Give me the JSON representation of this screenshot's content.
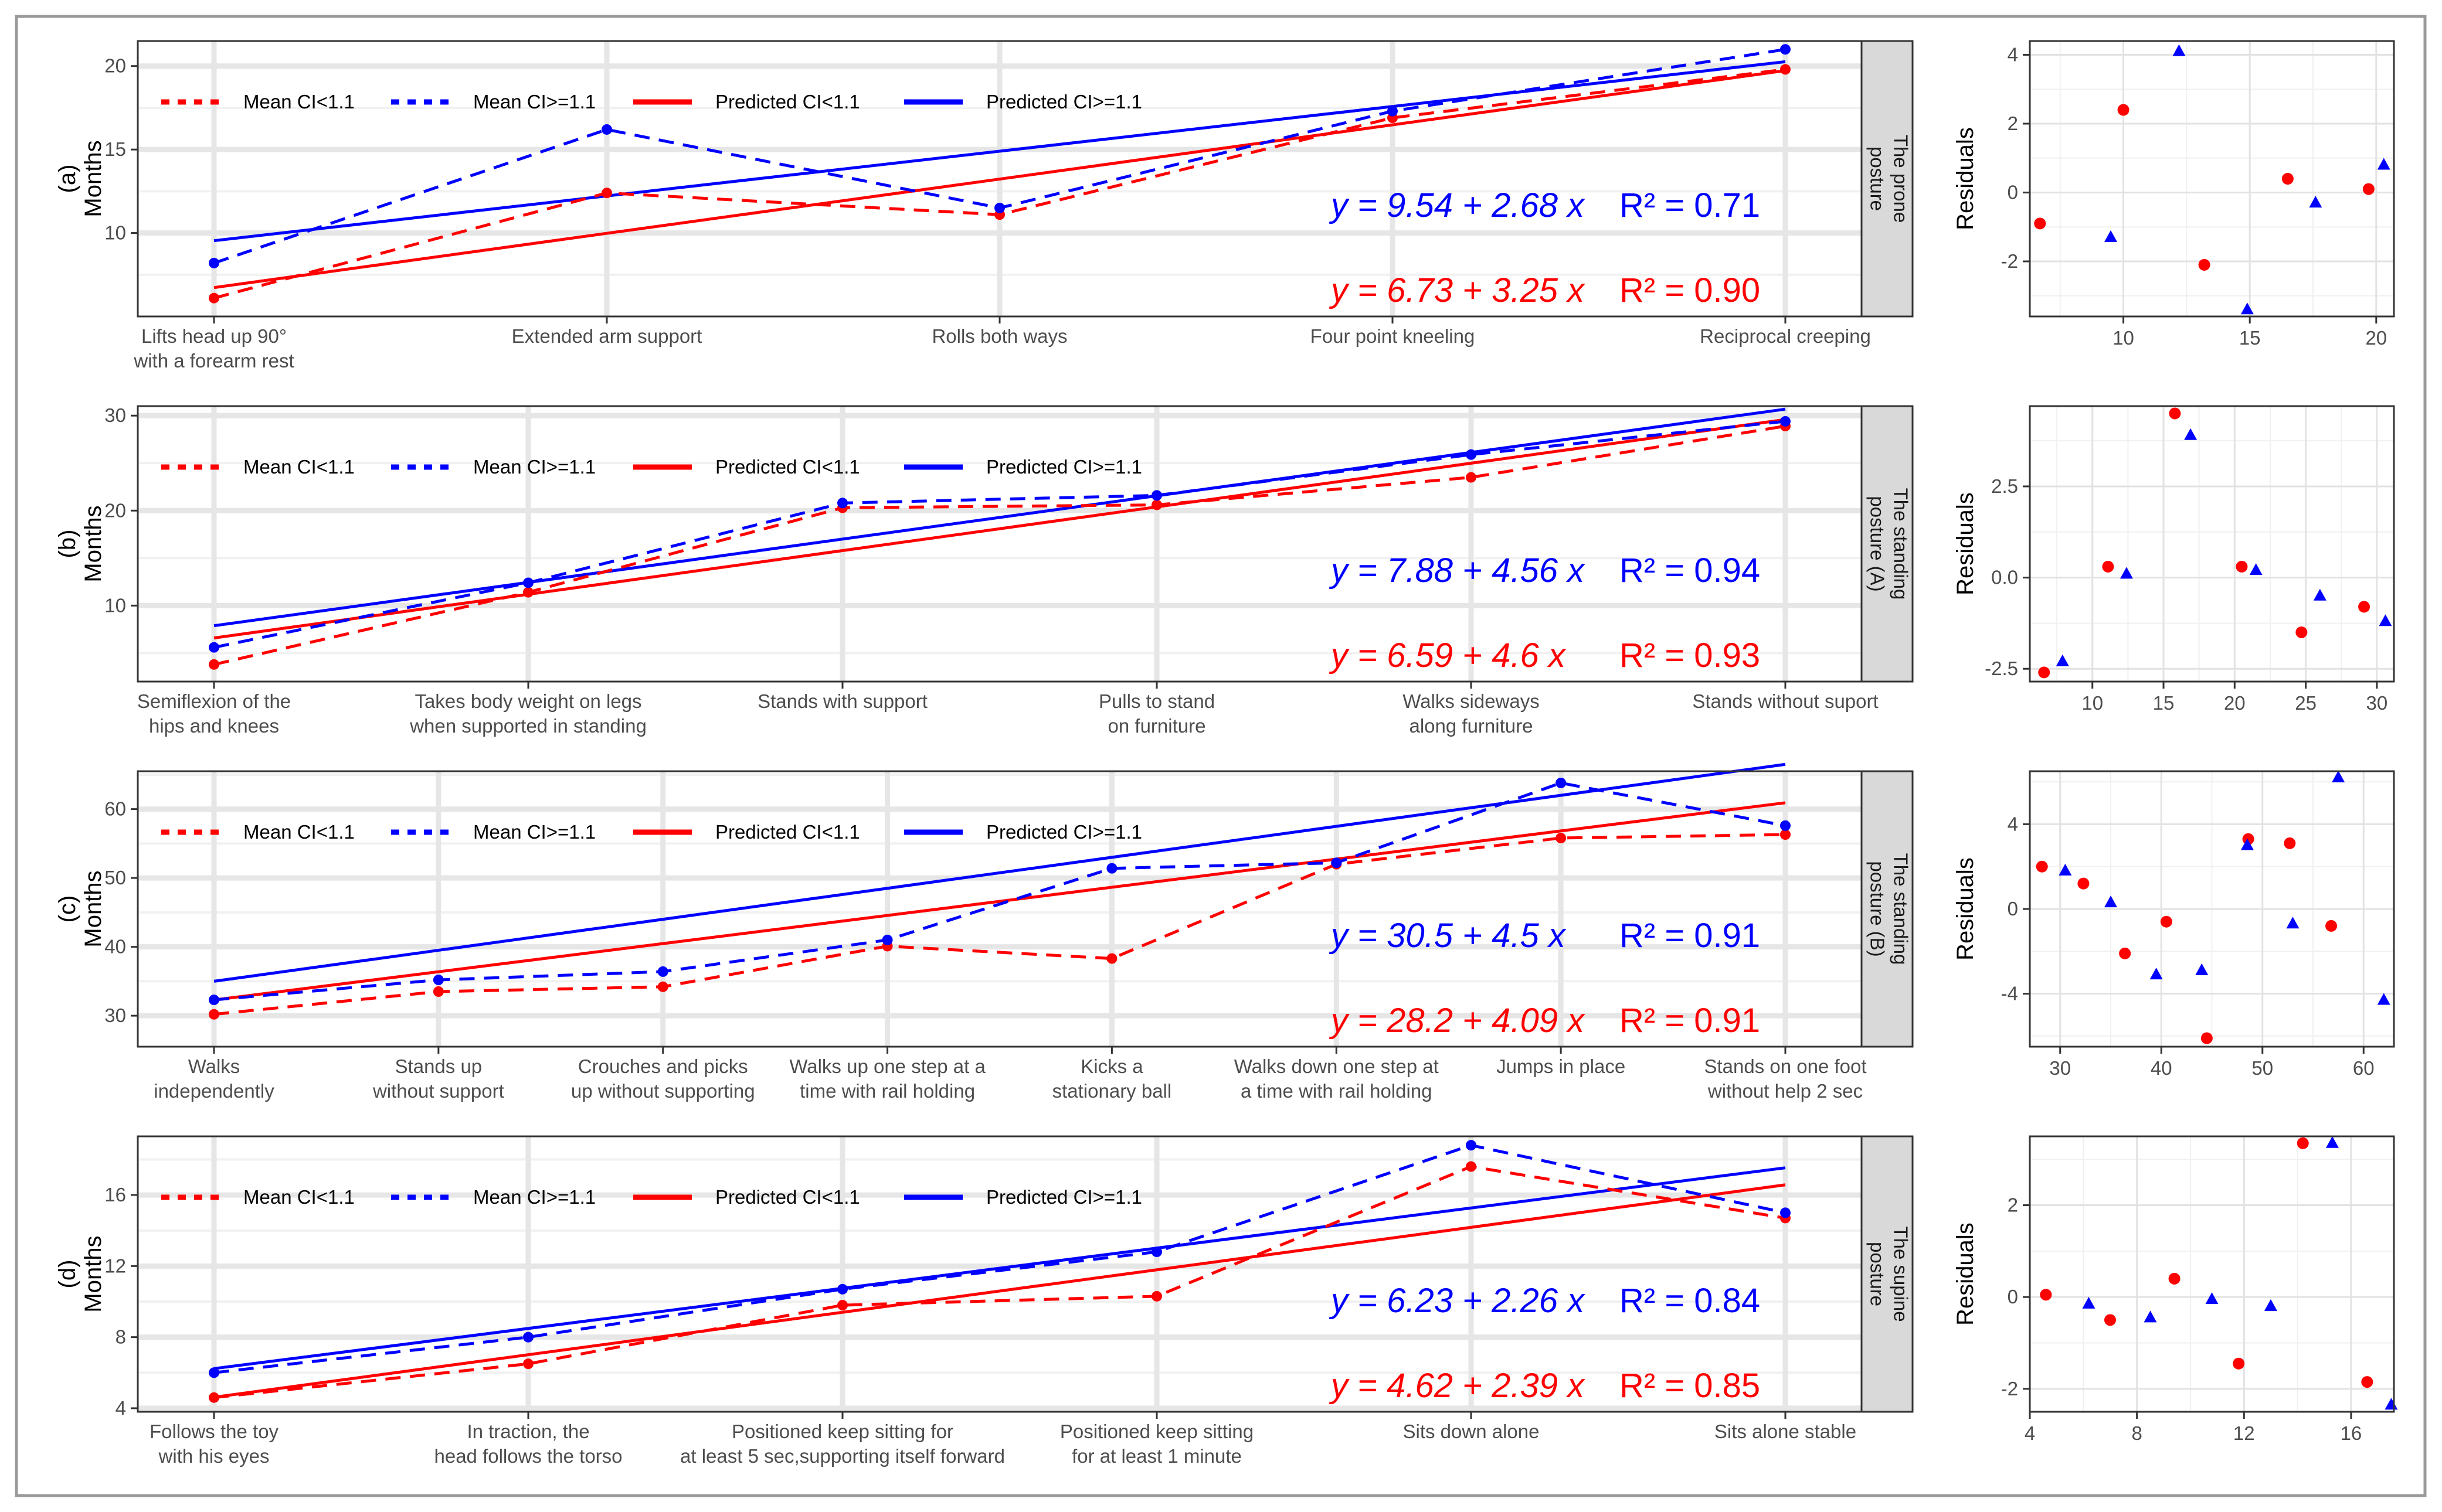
{
  "colors": {
    "low": "#ff0000",
    "high": "#0000ff",
    "grid": "#e6e6e6",
    "strip": "#d9d9d9"
  },
  "legend": {
    "mean_low": "Mean CI<1.1",
    "mean_high": "Mean CI>=1.1",
    "pred_low": "Predicted CI<1.1",
    "pred_high": "Predicted CI>=1.1"
  },
  "chart_data": [
    {
      "type": "line",
      "panel_label": "(a)",
      "ylabel": "Months",
      "ylabel_right": "Residuals",
      "strip": [
        "The prone",
        "posture"
      ],
      "categories": [
        [
          "Lifts head up 90°",
          "with a forearm rest"
        ],
        [
          "Extended arm support"
        ],
        [
          "Rolls both ways"
        ],
        [
          "Four point kneeling"
        ],
        [
          "Reciprocal creeping"
        ]
      ],
      "ylim": [
        5,
        21.5
      ],
      "yticks": [
        10,
        15,
        20
      ],
      "series": [
        {
          "name": "Mean CI<1.1",
          "values": [
            6.1,
            12.4,
            11.1,
            16.9,
            19.8
          ]
        },
        {
          "name": "Mean CI>=1.1",
          "values": [
            8.2,
            16.2,
            11.5,
            17.3,
            21.0
          ]
        },
        {
          "name": "Predicted CI<1.1",
          "intercept": 3.48,
          "slope": 3.25
        },
        {
          "name": "Predicted CI>=1.1",
          "intercept": 6.86,
          "slope": 2.68
        }
      ],
      "equations": [
        {
          "series": "high",
          "text": "y = 9.54 + 2.68 x",
          "r2": "R² = 0.71"
        },
        {
          "series": "low",
          "text": "y = 6.73 + 3.25 x",
          "r2": "R² = 0.90"
        }
      ],
      "residuals": {
        "xlim": [
          6.3,
          20.7
        ],
        "xticks": [
          10,
          15,
          20
        ],
        "ylim": [
          -3.6,
          4.4
        ],
        "yticks": [
          -2,
          0,
          2,
          4
        ],
        "low": [
          [
            6.7,
            -0.9
          ],
          [
            10.0,
            2.4
          ],
          [
            13.2,
            -2.1
          ],
          [
            16.5,
            0.4
          ],
          [
            19.7,
            0.1
          ]
        ],
        "high": [
          [
            9.5,
            -1.3
          ],
          [
            12.2,
            4.1
          ],
          [
            14.9,
            -3.4
          ],
          [
            17.6,
            -0.3
          ],
          [
            20.3,
            0.8
          ]
        ]
      }
    },
    {
      "type": "line",
      "panel_label": "(b)",
      "ylabel": "Months",
      "ylabel_right": "Residuals",
      "strip": [
        "The standing",
        "posture (A)"
      ],
      "categories": [
        [
          "Semiflexion of the",
          "hips and knees"
        ],
        [
          "Takes body weight on legs",
          "when supported in standing"
        ],
        [
          "Stands with support"
        ],
        [
          "Pulls to stand",
          "on furniture"
        ],
        [
          "Walks sideways",
          "along furniture"
        ],
        [
          "Stands without suport"
        ]
      ],
      "ylim": [
        2,
        31
      ],
      "yticks": [
        10,
        20,
        30
      ],
      "series": [
        {
          "name": "Mean CI<1.1",
          "values": [
            3.8,
            11.4,
            20.3,
            20.6,
            23.5,
            28.9
          ]
        },
        {
          "name": "Mean CI>=1.1",
          "values": [
            5.6,
            12.4,
            20.8,
            21.6,
            25.9,
            29.4
          ]
        },
        {
          "name": "Predicted CI<1.1",
          "intercept": 1.99,
          "slope": 4.6
        },
        {
          "name": "Predicted CI>=1.1",
          "intercept": 3.32,
          "slope": 4.56
        }
      ],
      "equations": [
        {
          "series": "high",
          "text": "y = 7.88 + 4.56 x",
          "r2": "R² = 0.94"
        },
        {
          "series": "low",
          "text": "y = 6.59 + 4.6 x",
          "r2": "R² = 0.93"
        }
      ],
      "residuals": {
        "xlim": [
          5.6,
          31.2
        ],
        "xticks": [
          10,
          15,
          20,
          25,
          30
        ],
        "ylim": [
          -2.85,
          4.7
        ],
        "yticks": [
          -2.5,
          0.0,
          2.5
        ],
        "yticklabels": [
          "-2.5",
          "0.0",
          "2.5"
        ],
        "low": [
          [
            6.6,
            -2.6
          ],
          [
            11.1,
            0.3
          ],
          [
            15.8,
            4.5
          ],
          [
            20.5,
            0.3
          ],
          [
            24.7,
            -1.5
          ],
          [
            29.1,
            -0.8
          ]
        ],
        "high": [
          [
            7.9,
            -2.3
          ],
          [
            12.4,
            0.1
          ],
          [
            16.9,
            3.9
          ],
          [
            21.5,
            0.2
          ],
          [
            26.0,
            -0.5
          ],
          [
            30.6,
            -1.2
          ]
        ]
      }
    },
    {
      "type": "line",
      "panel_label": "(c)",
      "ylabel": "Months",
      "ylabel_right": "Residuals",
      "strip": [
        "The standing",
        "posture (B)"
      ],
      "categories": [
        [
          "Walks",
          "independently"
        ],
        [
          "Stands up",
          "without support"
        ],
        [
          "Crouches and picks",
          "up without supporting"
        ],
        [
          "Walks up one step at a",
          "time with rail holding"
        ],
        [
          "Kicks a",
          "stationary ball"
        ],
        [
          "Walks down one step at",
          "a time with rail holding"
        ],
        [
          "Jumps in place"
        ],
        [
          "Stands on one foot",
          "without help 2 sec"
        ]
      ],
      "ylim": [
        25.5,
        65.5
      ],
      "yticks": [
        30,
        40,
        50,
        60
      ],
      "series": [
        {
          "name": "Mean CI<1.1",
          "values": [
            30.2,
            33.5,
            34.2,
            40.1,
            38.3,
            52.0,
            55.8,
            56.3
          ]
        },
        {
          "name": "Mean CI>=1.1",
          "values": [
            32.3,
            35.2,
            36.4,
            41.0,
            51.4,
            52.2,
            63.8,
            57.6
          ]
        },
        {
          "name": "Predicted CI<1.1",
          "intercept": 28.2,
          "slope": 4.09
        },
        {
          "name": "Predicted CI>=1.1",
          "intercept": 30.5,
          "slope": 4.5
        }
      ],
      "equations": [
        {
          "series": "high",
          "text": "y = 30.5 + 4.5 x",
          "r2": "R² = 0.91"
        },
        {
          "series": "low",
          "text": "y = 28.2 + 4.09 x",
          "r2": "R² = 0.91"
        }
      ],
      "residuals": {
        "xlim": [
          27,
          63
        ],
        "xticks": [
          30,
          40,
          50,
          60
        ],
        "ylim": [
          -6.5,
          6.5
        ],
        "yticks": [
          -4,
          0,
          4
        ],
        "low": [
          [
            28.2,
            2.0
          ],
          [
            32.3,
            1.2
          ],
          [
            36.4,
            -2.1
          ],
          [
            40.5,
            -0.6
          ],
          [
            44.5,
            -6.1
          ],
          [
            48.6,
            3.3
          ],
          [
            52.7,
            3.1
          ],
          [
            56.8,
            -0.8
          ]
        ],
        "high": [
          [
            30.5,
            1.8
          ],
          [
            35.0,
            0.3
          ],
          [
            39.5,
            -3.1
          ],
          [
            44.0,
            -2.9
          ],
          [
            48.5,
            3.0
          ],
          [
            53.0,
            -0.7
          ],
          [
            57.5,
            6.2
          ],
          [
            62.0,
            -4.3
          ]
        ]
      }
    },
    {
      "type": "line",
      "panel_label": "(d)",
      "ylabel": "Months",
      "ylabel_right": "Residuals",
      "strip": [
        "The supine",
        "posture"
      ],
      "categories": [
        [
          "Follows the toy",
          "with his eyes"
        ],
        [
          "In traction, the",
          "head follows the torso"
        ],
        [
          "Positioned keep sitting for",
          "at least 5 sec,supporting itself forward"
        ],
        [
          "Positioned keep sitting",
          "for at least 1 minute"
        ],
        [
          "Sits down alone"
        ],
        [
          "Sits alone stable"
        ]
      ],
      "ylim": [
        3.8,
        19.3
      ],
      "yticks": [
        4,
        8,
        12,
        16
      ],
      "series": [
        {
          "name": "Mean CI<1.1",
          "values": [
            4.6,
            6.5,
            9.8,
            10.3,
            17.6,
            14.7
          ]
        },
        {
          "name": "Mean CI>=1.1",
          "values": [
            6.0,
            8.0,
            10.7,
            12.8,
            18.8,
            15.0
          ]
        },
        {
          "name": "Predicted CI<1.1",
          "intercept": 2.23,
          "slope": 2.39
        },
        {
          "name": "Predicted CI>=1.1",
          "intercept": 3.97,
          "slope": 2.26
        }
      ],
      "equations": [
        {
          "series": "high",
          "text": "y = 6.23 + 2.26 x",
          "r2": "R² = 0.84"
        },
        {
          "series": "low",
          "text": "y = 4.62 + 2.39 x",
          "r2": "R² = 0.85"
        }
      ],
      "residuals": {
        "xlim": [
          4.0,
          17.6
        ],
        "xticks": [
          4,
          8,
          12,
          16
        ],
        "ylim": [
          -2.5,
          3.5
        ],
        "yticks": [
          -2,
          0,
          2
        ],
        "low": [
          [
            4.6,
            0.05
          ],
          [
            7.0,
            -0.5
          ],
          [
            9.4,
            0.4
          ],
          [
            11.8,
            -1.45
          ],
          [
            14.2,
            3.35
          ],
          [
            16.6,
            -1.85
          ]
        ],
        "high": [
          [
            6.2,
            -0.15
          ],
          [
            8.5,
            -0.45
          ],
          [
            10.8,
            -0.05
          ],
          [
            13.0,
            -0.2
          ],
          [
            15.3,
            3.35
          ],
          [
            17.5,
            -2.35
          ]
        ]
      }
    }
  ]
}
